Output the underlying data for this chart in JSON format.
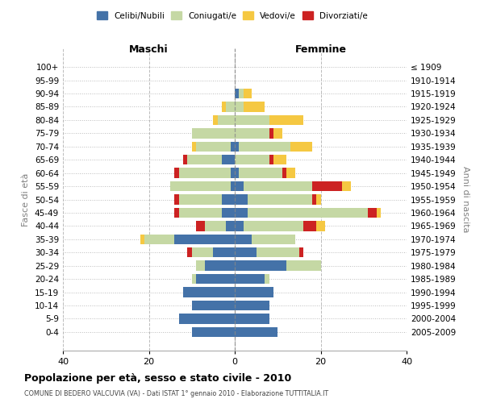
{
  "age_groups": [
    "0-4",
    "5-9",
    "10-14",
    "15-19",
    "20-24",
    "25-29",
    "30-34",
    "35-39",
    "40-44",
    "45-49",
    "50-54",
    "55-59",
    "60-64",
    "65-69",
    "70-74",
    "75-79",
    "80-84",
    "85-89",
    "90-94",
    "95-99",
    "100+"
  ],
  "birth_years": [
    "2005-2009",
    "2000-2004",
    "1995-1999",
    "1990-1994",
    "1985-1989",
    "1980-1984",
    "1975-1979",
    "1970-1974",
    "1965-1969",
    "1960-1964",
    "1955-1959",
    "1950-1954",
    "1945-1949",
    "1940-1944",
    "1935-1939",
    "1930-1934",
    "1925-1929",
    "1920-1924",
    "1915-1919",
    "1910-1914",
    "≤ 1909"
  ],
  "males": {
    "celibi": [
      10,
      13,
      10,
      12,
      9,
      7,
      5,
      14,
      2,
      3,
      3,
      1,
      1,
      3,
      1,
      0,
      0,
      0,
      0,
      0,
      0
    ],
    "coniugati": [
      0,
      0,
      0,
      0,
      1,
      2,
      5,
      7,
      5,
      10,
      10,
      14,
      12,
      8,
      8,
      10,
      4,
      2,
      0,
      0,
      0
    ],
    "vedovi": [
      0,
      0,
      0,
      0,
      0,
      0,
      0,
      1,
      0,
      0,
      0,
      0,
      0,
      0,
      1,
      0,
      1,
      1,
      0,
      0,
      0
    ],
    "divorziati": [
      0,
      0,
      0,
      0,
      0,
      0,
      1,
      0,
      2,
      1,
      1,
      0,
      1,
      1,
      0,
      0,
      0,
      0,
      0,
      0,
      0
    ]
  },
  "females": {
    "nubili": [
      10,
      8,
      8,
      9,
      7,
      12,
      5,
      4,
      2,
      3,
      3,
      2,
      1,
      0,
      1,
      0,
      0,
      0,
      1,
      0,
      0
    ],
    "coniugate": [
      0,
      0,
      0,
      0,
      1,
      8,
      10,
      10,
      14,
      28,
      15,
      16,
      10,
      8,
      12,
      8,
      8,
      2,
      1,
      0,
      0
    ],
    "vedove": [
      0,
      0,
      0,
      0,
      0,
      0,
      0,
      0,
      2,
      1,
      1,
      2,
      2,
      3,
      5,
      2,
      8,
      5,
      2,
      0,
      0
    ],
    "divorziate": [
      0,
      0,
      0,
      0,
      0,
      0,
      1,
      0,
      3,
      2,
      1,
      7,
      1,
      1,
      0,
      1,
      0,
      0,
      0,
      0,
      0
    ]
  },
  "colors": {
    "celibi_nubili": "#4472a8",
    "coniugati": "#c5d8a4",
    "vedovi": "#f5c842",
    "divorziati": "#cc2222"
  },
  "xlim": 40,
  "title": "Popolazione per età, sesso e stato civile - 2010",
  "subtitle": "COMUNE DI BEDERO VALCUVIA (VA) - Dati ISTAT 1° gennaio 2010 - Elaborazione TUTTITALIA.IT",
  "ylabel_left": "Fasce di età",
  "ylabel_right": "Anni di nascita",
  "xlabel_maschi": "Maschi",
  "xlabel_femmine": "Femmine"
}
